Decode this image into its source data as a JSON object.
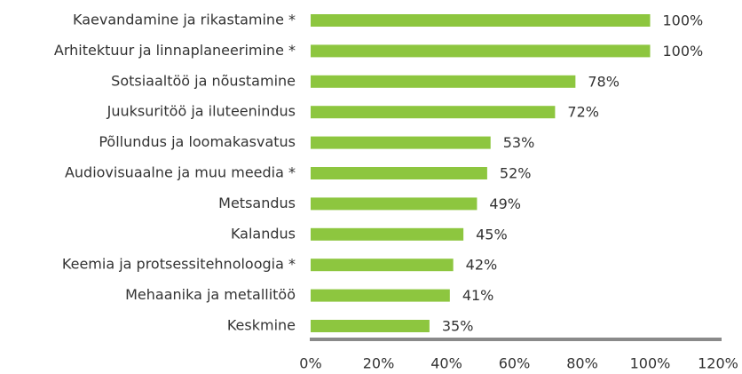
{
  "chart_data": {
    "type": "bar",
    "orientation": "horizontal",
    "categories": [
      "Kaevandamine ja rikastamine *",
      "Arhitektuur ja linnaplaneerimine *",
      "Sotsiaaltöö ja nõustamine",
      "Juuksuritöö ja iluteenindus",
      "Põllundus ja loomakasvatus",
      "Audiovisuaalne ja muu meedia *",
      "Metsandus",
      "Kalandus",
      "Keemia ja protsessitehnoloogia *",
      "Mehaanika ja metallitöö",
      "Keskmine"
    ],
    "values": [
      100,
      100,
      78,
      72,
      53,
      52,
      49,
      45,
      42,
      41,
      35
    ],
    "value_labels": [
      "100%",
      "100%",
      "78%",
      "72%",
      "53%",
      "52%",
      "49%",
      "45%",
      "42%",
      "41%",
      "35%"
    ],
    "color": "#8dc63f",
    "xlim": [
      0,
      120
    ],
    "xticks": [
      {
        "value": 0,
        "label": "0%"
      },
      {
        "value": 20,
        "label": "20%"
      },
      {
        "value": 40,
        "label": "40%"
      },
      {
        "value": 60,
        "label": "60%"
      },
      {
        "value": 80,
        "label": "80%"
      },
      {
        "value": 100,
        "label": "100%"
      },
      {
        "value": 120,
        "label": "120%"
      }
    ],
    "grid": false
  }
}
